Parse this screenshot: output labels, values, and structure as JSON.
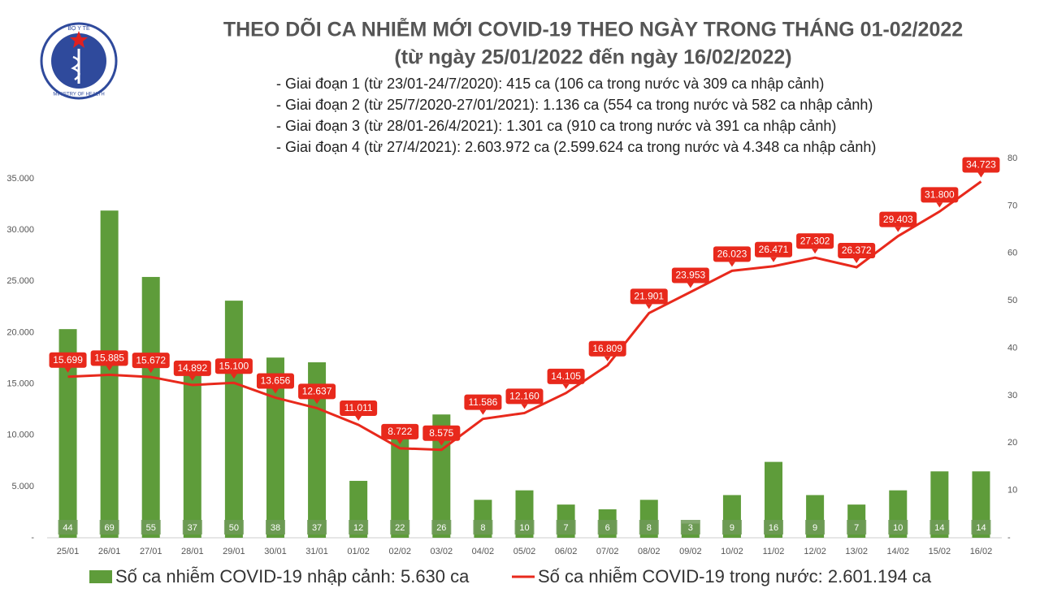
{
  "logo": {
    "top": "BỘ Y TẾ",
    "bottom": "MINISTRY OF HEALTH"
  },
  "chart_data": {
    "type": "bar-line",
    "title": "THEO DÕI CA NHIỄM MỚI COVID-19 THEO NGÀY TRONG THÁNG 01-02/2022",
    "subtitle": "(từ ngày 25/01/2022 đến ngày 16/02/2022)",
    "notes": [
      "- Giai đoạn 1 (từ 23/01-24/7/2020): 415 ca (106 ca trong nước và 309 ca nhập cảnh)",
      "- Giai đoạn 2 (từ 25/7/2020-27/01/2021): 1.136 ca (554 ca trong nước và 582 ca nhập cảnh)",
      "- Giai đoạn 3 (từ 28/01-26/4/2021): 1.301 ca (910 ca trong nước và 391 ca nhập cảnh)",
      "- Giai đoạn 4 (từ 27/4/2021): 2.603.972 ca (2.599.624 ca trong nước và 4.348 ca nhập cảnh)"
    ],
    "categories": [
      "25/01",
      "26/01",
      "27/01",
      "28/01",
      "29/01",
      "30/01",
      "31/01",
      "01/02",
      "02/02",
      "03/02",
      "04/02",
      "05/02",
      "06/02",
      "07/02",
      "08/02",
      "09/02",
      "10/02",
      "11/02",
      "12/02",
      "13/02",
      "14/02",
      "15/02",
      "16/02"
    ],
    "series": [
      {
        "name": "Số ca nhiễm COVID-19 nhập cảnh: 5.630 ca",
        "type": "bar",
        "axis": "y2",
        "color": "#5e9c3a",
        "values": [
          44,
          69,
          55,
          37,
          50,
          38,
          37,
          12,
          22,
          26,
          8,
          10,
          7,
          6,
          8,
          3,
          9,
          16,
          9,
          7,
          10,
          14,
          14
        ]
      },
      {
        "name": "Số ca nhiễm COVID-19 trong nước: 2.601.194 ca",
        "type": "line",
        "color": "#e8291c",
        "values": [
          15699,
          15885,
          15672,
          14892,
          15100,
          13656,
          12637,
          11011,
          8722,
          8575,
          11586,
          12160,
          14105,
          16809,
          21901,
          23953,
          26023,
          26471,
          27302,
          26372,
          29403,
          31800,
          34723
        ],
        "value_labels": [
          "15.699",
          "15.885",
          "15.672",
          "14.892",
          "15.100",
          "13.656",
          "12.637",
          "11.011",
          "8.722",
          "8.575",
          "11.586",
          "12.160",
          "14.105",
          "16.809",
          "21.901",
          "23.953",
          "26.023",
          "26.471",
          "27.302",
          "26.372",
          "29.403",
          "31.800",
          "34.723"
        ]
      }
    ],
    "ylim": [
      0,
      35000
    ],
    "yticks": [
      {
        "value": 0,
        "label": "-"
      },
      {
        "value": 5000,
        "label": "5.000"
      },
      {
        "value": 10000,
        "label": "10.000"
      },
      {
        "value": 15000,
        "label": "15.000"
      },
      {
        "value": 20000,
        "label": "20.000"
      },
      {
        "value": 25000,
        "label": "25.000"
      },
      {
        "value": 30000,
        "label": "30.000"
      },
      {
        "value": 35000,
        "label": "35.000"
      }
    ],
    "y2lim": [
      0,
      80
    ],
    "y2ticks": [
      {
        "value": 0,
        "label": "-"
      },
      10,
      20,
      30,
      40,
      50,
      60,
      70,
      80
    ]
  }
}
